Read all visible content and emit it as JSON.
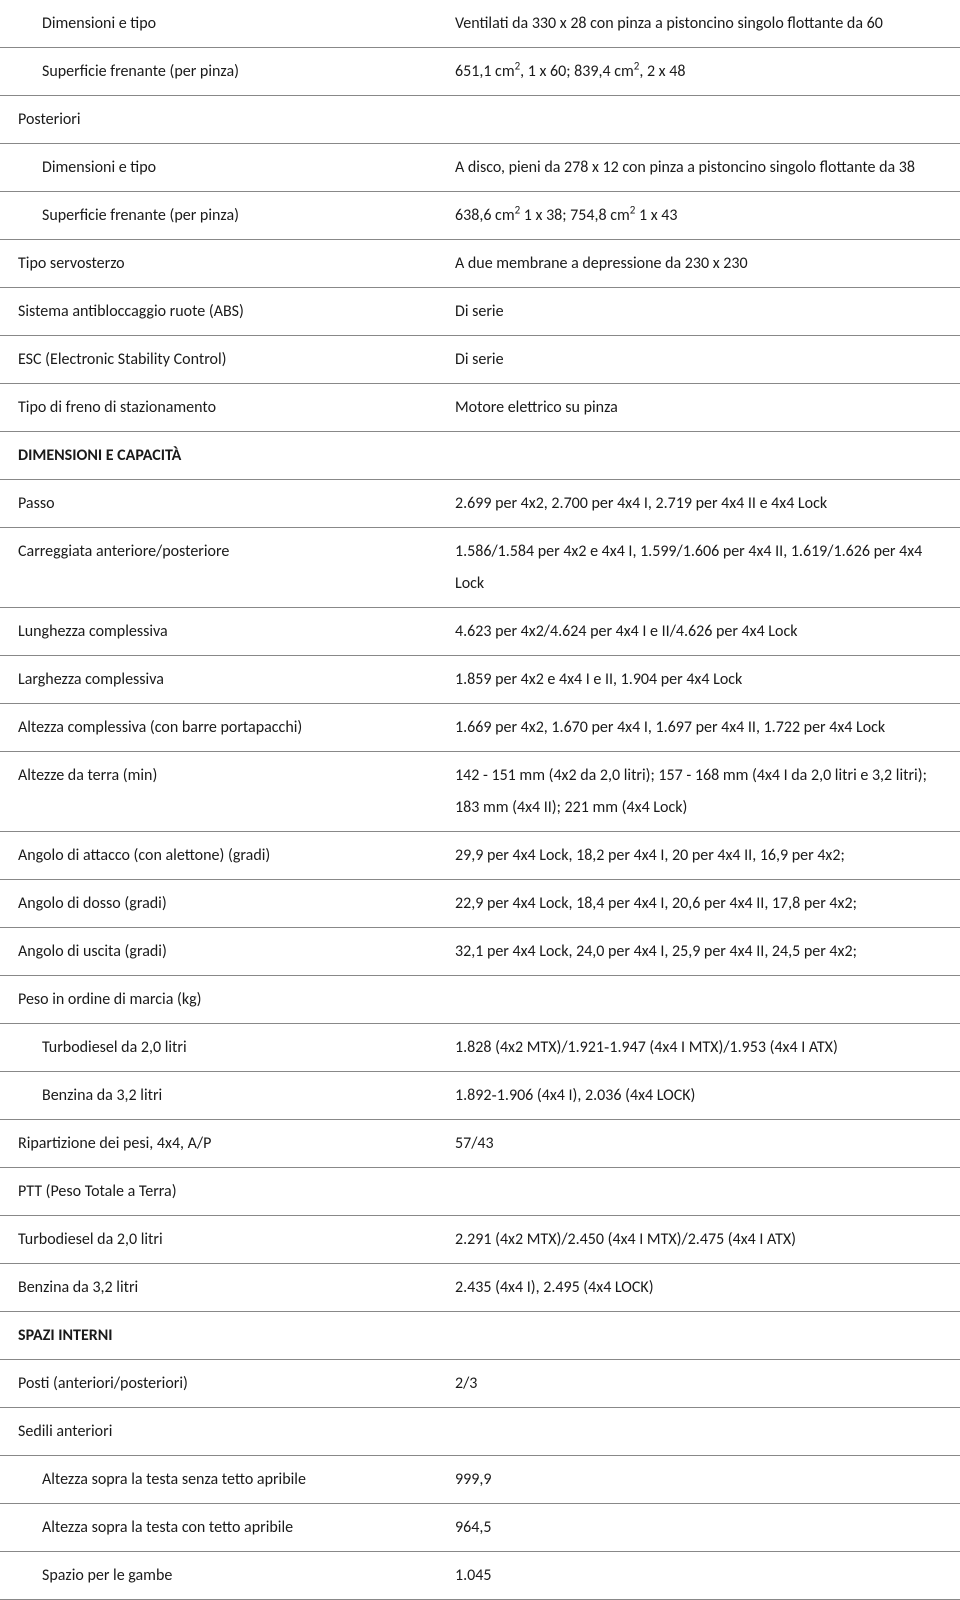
{
  "rows": [
    {
      "label": "Dimensioni e tipo",
      "value": "Ventilati da 330 x 28 con pinza a pistoncino singolo flottante da 60",
      "indent": true
    },
    {
      "label": "Superficie frenante (per pinza)",
      "value_html": "651,1 cm<sup>2</sup>, 1 x 60; 839,4 cm<sup>2</sup>, 2 x 48",
      "indent": true
    },
    {
      "label": "Posteriori",
      "value": "",
      "indent": false
    },
    {
      "label": "Dimensioni e tipo",
      "value": "A disco, pieni da 278 x 12 con pinza a pistoncino singolo flottante da 38",
      "indent": true
    },
    {
      "label": "Superficie frenante (per pinza)",
      "value_html": "638,6 cm<sup>2</sup> 1 x 38; 754,8 cm<sup>2</sup> 1 x 43",
      "indent": true
    },
    {
      "label": "Tipo servosterzo",
      "value": "A due membrane a depressione da 230 x 230",
      "indent": false
    },
    {
      "label": "Sistema antibloccaggio ruote (ABS)",
      "value": "Di serie",
      "indent": false
    },
    {
      "label": "ESC (Electronic Stability Control)",
      "value": "Di serie",
      "indent": false
    },
    {
      "label": "Tipo di freno di stazionamento",
      "value": "Motore elettrico su pinza",
      "indent": false
    },
    {
      "label": "DIMENSIONI E CAPACITÀ",
      "value": "",
      "indent": false,
      "bold": true
    },
    {
      "label": "Passo",
      "value": "2.699 per 4x2, 2.700 per 4x4 I, 2.719 per 4x4 II e 4x4 Lock",
      "indent": false
    },
    {
      "label": "Carreggiata anteriore/posteriore",
      "value": "1.586/1.584 per 4x2 e 4x4 I, 1.599/1.606 per 4x4 II, 1.619/1.626 per 4x4 Lock",
      "indent": false
    },
    {
      "label": "Lunghezza complessiva",
      "value": "4.623 per 4x2/4.624 per 4x4 I e II/4.626 per 4x4 Lock",
      "indent": false
    },
    {
      "label": "Larghezza complessiva",
      "value": "1.859 per 4x2 e 4x4 I e II, 1.904 per 4x4 Lock",
      "indent": false
    },
    {
      "label": "Altezza complessiva (con barre portapacchi)",
      "value": "1.669 per 4x2, 1.670 per 4x4 I, 1.697 per 4x4 II, 1.722 per 4x4 Lock",
      "indent": false
    },
    {
      "label": "Altezze da terra (min)",
      "value": "142 - 151 mm (4x2 da 2,0 litri); 157 - 168 mm (4x4 I da 2,0 litri e 3,2 litri); 183 mm (4x4 II); 221 mm (4x4 Lock)",
      "indent": false
    },
    {
      "label": "Angolo di attacco (con alettone) (gradi)",
      "value": "29,9 per 4x4 Lock, 18,2 per 4x4 I, 20 per 4x4 II, 16,9 per 4x2;",
      "indent": false
    },
    {
      "label": "Angolo di dosso (gradi)",
      "value": "22,9 per 4x4 Lock, 18,4 per 4x4 I, 20,6 per 4x4 II, 17,8 per 4x2;",
      "indent": false
    },
    {
      "label": "Angolo di uscita (gradi)",
      "value": "32,1 per 4x4 Lock, 24,0 per 4x4 I, 25,9 per 4x4 II, 24,5 per 4x2;",
      "indent": false
    },
    {
      "label": "Peso in ordine di marcia (kg)",
      "value": "",
      "indent": false
    },
    {
      "label": "Turbodiesel da 2,0 litri",
      "value": "1.828 (4x2 MTX)/1.921‑1.947 (4x4 I MTX)/1.953 (4x4 I ATX)",
      "indent": true
    },
    {
      "label": "Benzina da 3,2 litri",
      "value": "1.892‑1.906 (4x4 I), 2.036 (4x4 LOCK)",
      "indent": true
    },
    {
      "label": "Ripartizione dei pesi, 4x4, A/P",
      "value": "57/43",
      "indent": false
    },
    {
      "label": "PTT (Peso Totale a Terra)",
      "value": "",
      "indent": false
    },
    {
      "label": "Turbodiesel da 2,0 litri",
      "value": "2.291 (4x2 MTX)/2.450 (4x4 I MTX)/2.475 (4x4 I ATX)",
      "indent": false
    },
    {
      "label": "Benzina da 3,2 litri",
      "value": "2.435 (4x4 I), 2.495 (4x4 LOCK)",
      "indent": false
    },
    {
      "label": "SPAZI INTERNI",
      "value": "",
      "indent": false,
      "bold": true
    },
    {
      "label": "Posti (anteriori/posteriori)",
      "value": "2/3",
      "indent": false
    },
    {
      "label": "Sedili anteriori",
      "value": "",
      "indent": false
    },
    {
      "label": "Altezza sopra la testa senza tetto apribile",
      "value": "999,9",
      "indent": true
    },
    {
      "label": "Altezza sopra la testa con tetto apribile",
      "value": "964,5",
      "indent": true
    },
    {
      "label": "Spazio per le gambe",
      "value": "1.045",
      "indent": true
    }
  ]
}
